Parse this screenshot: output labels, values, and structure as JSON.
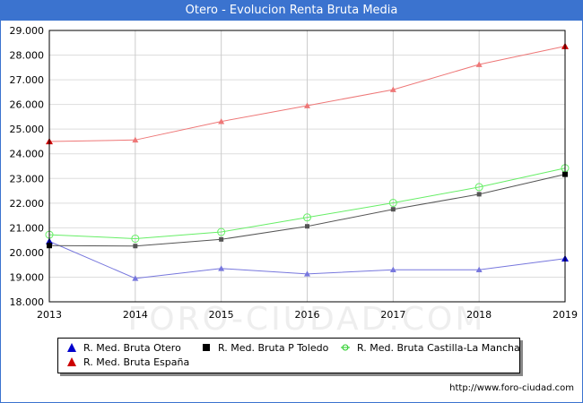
{
  "window": {
    "title": "Otero - Evolucion Renta Bruta Media"
  },
  "footer": {
    "url": "http://www.foro-ciudad.com"
  },
  "watermark": "FORO-CIUDAD.COM",
  "chart_data": {
    "type": "line",
    "title": "Otero - Evolucion Renta Bruta Media",
    "xlabel": "",
    "ylabel": "",
    "x": [
      2013,
      2014,
      2015,
      2016,
      2017,
      2018,
      2019
    ],
    "ylim": [
      18000,
      29000
    ],
    "yticks": [
      18000,
      19000,
      20000,
      21000,
      22000,
      23000,
      24000,
      25000,
      26000,
      27000,
      28000,
      29000
    ],
    "ytick_labels": [
      "18.000",
      "19.000",
      "20.000",
      "21.000",
      "22.000",
      "23.000",
      "24.000",
      "25.000",
      "26.000",
      "27.000",
      "28.000",
      "29.000"
    ],
    "grid": true,
    "legend_position": "bottom",
    "series": [
      {
        "name": "R. Med. Bruta Otero",
        "color": "#0000cc",
        "line_color": "#7777dd",
        "marker": "triangle",
        "values": [
          20450,
          18950,
          19350,
          19130,
          19300,
          19300,
          19750
        ]
      },
      {
        "name": "R. Med. Bruta P Toledo",
        "color": "#000000",
        "line_color": "#555555",
        "marker": "square",
        "values": [
          20280,
          20260,
          20530,
          21060,
          21750,
          22360,
          23170
        ]
      },
      {
        "name": "R. Med. Bruta Castilla-La Mancha",
        "color": "#22cc22",
        "line_color": "#66ee66",
        "marker": "circle",
        "values": [
          20720,
          20560,
          20830,
          21420,
          22010,
          22650,
          23420
        ]
      },
      {
        "name": "R. Med. Bruta España",
        "color": "#cc0000",
        "line_color": "#ee7777",
        "marker": "triangle",
        "values": [
          24500,
          24560,
          25310,
          25950,
          26600,
          27620,
          28360
        ]
      }
    ]
  }
}
